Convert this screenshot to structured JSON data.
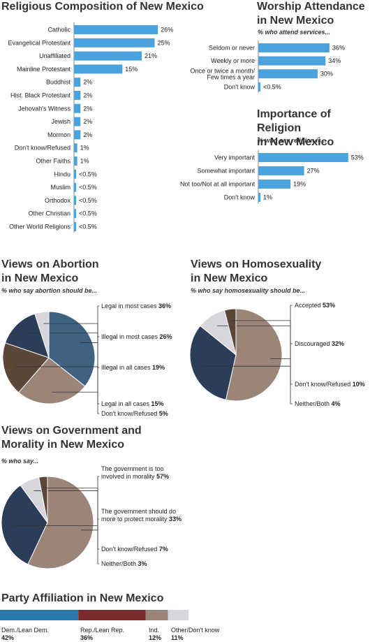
{
  "chart_data": [
    {
      "id": "composition",
      "type": "bar",
      "orientation": "horizontal",
      "title": "Religious Composition of New Mexico",
      "categories": [
        "Catholic",
        "Evangelical Protestant",
        "Unaffiliated",
        "Mainline Protestant",
        "Buddhist",
        "Hist. Black Protestant",
        "Jehovah's Witness",
        "Jewish",
        "Mormon",
        "Don't know/Refused",
        "Other Faiths",
        "Hindu",
        "Muslim",
        "Orthodox",
        "Other Christian",
        "Other World Religions"
      ],
      "values": [
        26,
        25,
        21,
        15,
        2,
        2,
        2,
        2,
        2,
        1,
        1,
        0.3,
        0.3,
        0.3,
        0.3,
        0.3
      ],
      "labels": [
        "26%",
        "25%",
        "21%",
        "15%",
        "2%",
        "2%",
        "2%",
        "2%",
        "2%",
        "1%",
        "1%",
        "<0.5%",
        "<0.5%",
        "<0.5%",
        "<0.5%",
        "<0.5%"
      ],
      "color": "#4aa3dc"
    },
    {
      "id": "attendance",
      "type": "bar",
      "orientation": "horizontal",
      "title": "Worship Attendance in New Mexico",
      "subtitle": "% who attend services...",
      "categories": [
        "Seldom or never",
        "Weekly or more",
        "Once or twice a month/ Few times a year",
        "Don't know"
      ],
      "values": [
        36,
        34,
        30,
        0.3
      ],
      "labels": [
        "36%",
        "34%",
        "30%",
        "<0.5%"
      ],
      "color": "#4aa3dc"
    },
    {
      "id": "importance",
      "type": "bar",
      "orientation": "horizontal",
      "title": "Importance of Religion in New Mexico",
      "subtitle": "% who say religion is...",
      "categories": [
        "Very important",
        "Somewhat important",
        "Not too/Not at all important",
        "Don't know"
      ],
      "values": [
        53,
        27,
        19,
        1
      ],
      "labels": [
        "53%",
        "27%",
        "19%",
        "1%"
      ],
      "color": "#4aa3dc"
    },
    {
      "id": "abortion",
      "type": "pie",
      "title": "Views on Abortion in New Mexico",
      "subtitle": "% who say abortion should be...",
      "slices": [
        {
          "name": "Legal in most cases",
          "value": 36,
          "label": "36%",
          "color": "#3f6283"
        },
        {
          "name": "Illegal in most cases",
          "value": 26,
          "label": "26%",
          "color": "#9b8579"
        },
        {
          "name": "Illegal in all cases",
          "value": 19,
          "label": "19%",
          "color": "#5b4739"
        },
        {
          "name": "Legal in all cases",
          "value": 15,
          "label": "15%",
          "color": "#2b3d59"
        },
        {
          "name": "Don't know/Refused",
          "value": 5,
          "label": "5%",
          "color": "#d8d6dc"
        }
      ]
    },
    {
      "id": "homosexuality",
      "type": "pie",
      "title": "Views on Homosexuality in New Mexico",
      "subtitle": "% who say homosexuality should be...",
      "slices": [
        {
          "name": "Accepted",
          "value": 53,
          "label": "53%",
          "color": "#9b8579"
        },
        {
          "name": "Discouraged",
          "value": 32,
          "label": "32%",
          "color": "#2b3d59"
        },
        {
          "name": "Don't know/Refused",
          "value": 10,
          "label": "10%",
          "color": "#d8d6dc"
        },
        {
          "name": "Neither/Both",
          "value": 4,
          "label": "4%",
          "color": "#5b4739"
        }
      ]
    },
    {
      "id": "government",
      "type": "pie",
      "title": "Views on Government and Morality in New Mexico",
      "subtitle": "% who say...",
      "slices": [
        {
          "name": "The government is too involved in morality",
          "value": 57,
          "label": "57%",
          "color": "#9b8579"
        },
        {
          "name": "The government should do more to protect morality",
          "value": 33,
          "label": "33%",
          "color": "#2b3d59"
        },
        {
          "name": "Don't know/Refused",
          "value": 7,
          "label": "7%",
          "color": "#d8d6dc"
        },
        {
          "name": "Neither/Both",
          "value": 3,
          "label": "3%",
          "color": "#5b4739"
        }
      ]
    },
    {
      "id": "party",
      "type": "bar",
      "orientation": "stacked-horizontal",
      "title": "Party Affiliation in New Mexico",
      "segments": [
        {
          "name": "Dem./Lean Dem.",
          "value": 42,
          "label": "42%",
          "color": "#2a7ab0"
        },
        {
          "name": "Rep./Lean Rep.",
          "value": 36,
          "label": "36%",
          "color": "#7a2a2a"
        },
        {
          "name": "Ind.",
          "value": 12,
          "label": "12%",
          "color": "#9b8579"
        },
        {
          "name": "Other/Don't know",
          "value": 11,
          "label": "11%",
          "color": "#d8d6dc"
        }
      ]
    }
  ]
}
